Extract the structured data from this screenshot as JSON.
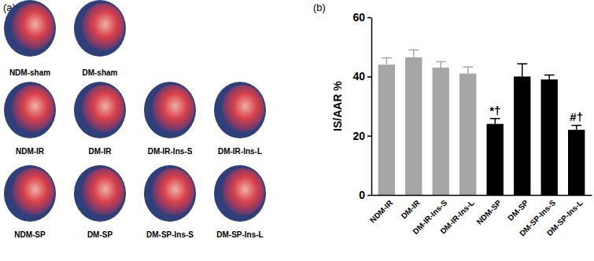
{
  "chart_data": {
    "type": "bar",
    "title": "(b)",
    "y_label": "IS/AAR %",
    "categories": [
      "NDM-IR",
      "DM-IR",
      "DM-IR-Ins-S",
      "DM-IR-Ins-L",
      "NDM-SP",
      "DM-SP",
      "DM-SP-Ins-S",
      "DM-SP-Ins-L"
    ],
    "values": [
      44,
      46.5,
      43,
      41,
      24,
      40,
      39,
      22
    ],
    "errors": [
      2.3,
      2.5,
      2,
      2.2,
      1.8,
      4.3,
      1.5,
      1.5
    ],
    "colors": [
      "#a6a6a6",
      "#a6a6a6",
      "#a6a6a6",
      "#a6a6a6",
      "#000000",
      "#000000",
      "#000000",
      "#000000"
    ],
    "ylim": [
      0,
      60
    ],
    "yticks": [
      0,
      20,
      40,
      60
    ],
    "annotations": [
      {
        "text": "*†",
        "category": "NDM-SP"
      },
      {
        "text": "#†",
        "category": "DM-SP-Ins-L"
      }
    ]
  },
  "image_panel": {
    "label": "(a)",
    "rows": [
      [
        "NDM-sham",
        "DM-sham"
      ],
      [
        "NDM-IR",
        "DM-IR",
        "DM-IR-Ins-S",
        "DM-IR-Ins-L"
      ],
      [
        "NDM-SP",
        "DM-SP",
        "DM-SP-Ins-S",
        "DM-SP-Ins-L"
      ]
    ]
  }
}
